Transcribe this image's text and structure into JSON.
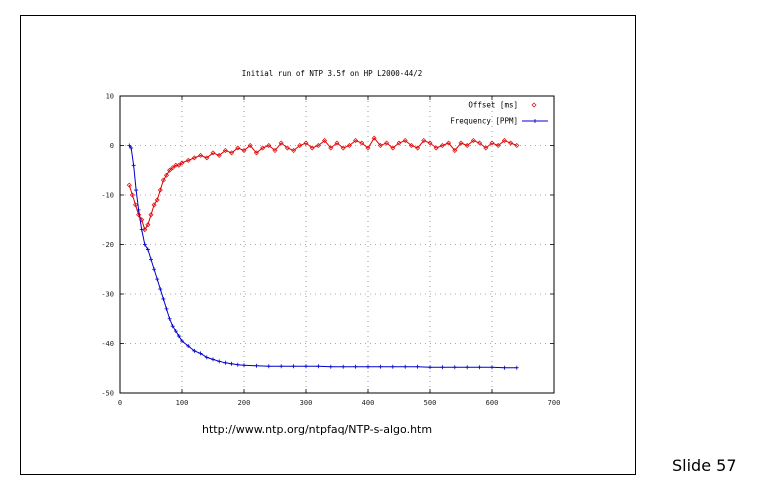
{
  "slide": {
    "source_url": "http://www.ntp.org/ntpfaq/NTP-s-algo.htm",
    "slide_number": "Slide 57"
  },
  "chart_data": {
    "type": "line",
    "title": "Initial run of NTP 3.5f on HP L2000-44/2",
    "xlabel": "",
    "ylabel": "",
    "xlim": [
      0,
      700
    ],
    "ylim": [
      -50,
      10
    ],
    "x_ticks": [
      0,
      100,
      200,
      300,
      400,
      500,
      600,
      700
    ],
    "y_ticks": [
      10,
      0,
      -10,
      -20,
      -30,
      -40,
      -50
    ],
    "x_tick_labels": [
      "0",
      "100",
      "200",
      "300",
      "400",
      "500",
      "600",
      "700"
    ],
    "y_tick_labels": [
      "10",
      "0",
      "-10",
      "-20",
      "-30",
      "-40",
      "-50"
    ],
    "grid": true,
    "legend_position": "top-right",
    "series": [
      {
        "name": "Offset [ms]",
        "color": "#e00000",
        "marker": "diamond",
        "x": [
          15,
          20,
          25,
          30,
          35,
          40,
          45,
          50,
          55,
          60,
          65,
          70,
          75,
          80,
          85,
          90,
          95,
          100,
          110,
          120,
          130,
          140,
          150,
          160,
          170,
          180,
          190,
          200,
          210,
          220,
          230,
          240,
          250,
          260,
          270,
          280,
          290,
          300,
          310,
          320,
          330,
          340,
          350,
          360,
          370,
          380,
          390,
          400,
          410,
          420,
          430,
          440,
          450,
          460,
          470,
          480,
          490,
          500,
          510,
          520,
          530,
          540,
          550,
          560,
          570,
          580,
          590,
          600,
          610,
          620,
          630,
          640
        ],
        "y": [
          -8,
          -10,
          -12,
          -14,
          -15,
          -17,
          -16,
          -14,
          -12,
          -11,
          -9,
          -7,
          -6,
          -5,
          -4.5,
          -4,
          -4,
          -3.5,
          -3,
          -2.5,
          -2,
          -2.5,
          -1.5,
          -2,
          -1,
          -1.5,
          -0.5,
          -1,
          0,
          -1.5,
          -0.5,
          0,
          -1,
          0.5,
          -0.5,
          -1,
          0,
          0.5,
          -0.5,
          0,
          1,
          -0.5,
          0.5,
          -0.5,
          0,
          1,
          0.5,
          -0.5,
          1.5,
          0,
          0.5,
          -0.5,
          0.5,
          1,
          0,
          -0.5,
          1,
          0.5,
          -0.5,
          0,
          0.5,
          -1,
          0.5,
          0,
          1,
          0.5,
          -0.5,
          0.5,
          0,
          1,
          0.5,
          0
        ]
      },
      {
        "name": "Frequency [PPM]",
        "color": "#0000cc",
        "marker": "plus",
        "x": [
          15,
          18,
          22,
          26,
          30,
          35,
          40,
          45,
          50,
          55,
          60,
          65,
          70,
          75,
          80,
          85,
          90,
          95,
          100,
          110,
          120,
          130,
          140,
          150,
          160,
          170,
          180,
          190,
          200,
          220,
          240,
          260,
          280,
          300,
          320,
          340,
          360,
          380,
          400,
          420,
          440,
          460,
          480,
          500,
          520,
          540,
          560,
          580,
          600,
          620,
          640
        ],
        "y": [
          0,
          -0.5,
          -4,
          -9,
          -13,
          -17,
          -20,
          -21,
          -23,
          -25,
          -27,
          -29,
          -31,
          -33,
          -35,
          -36.5,
          -37.5,
          -38.5,
          -39.5,
          -40.5,
          -41.5,
          -42,
          -42.8,
          -43.2,
          -43.6,
          -43.9,
          -44.1,
          -44.3,
          -44.4,
          -44.5,
          -44.6,
          -44.6,
          -44.6,
          -44.6,
          -44.6,
          -44.7,
          -44.7,
          -44.7,
          -44.7,
          -44.7,
          -44.7,
          -44.7,
          -44.7,
          -44.8,
          -44.8,
          -44.8,
          -44.8,
          -44.8,
          -44.8,
          -44.9,
          -44.9
        ]
      }
    ]
  }
}
